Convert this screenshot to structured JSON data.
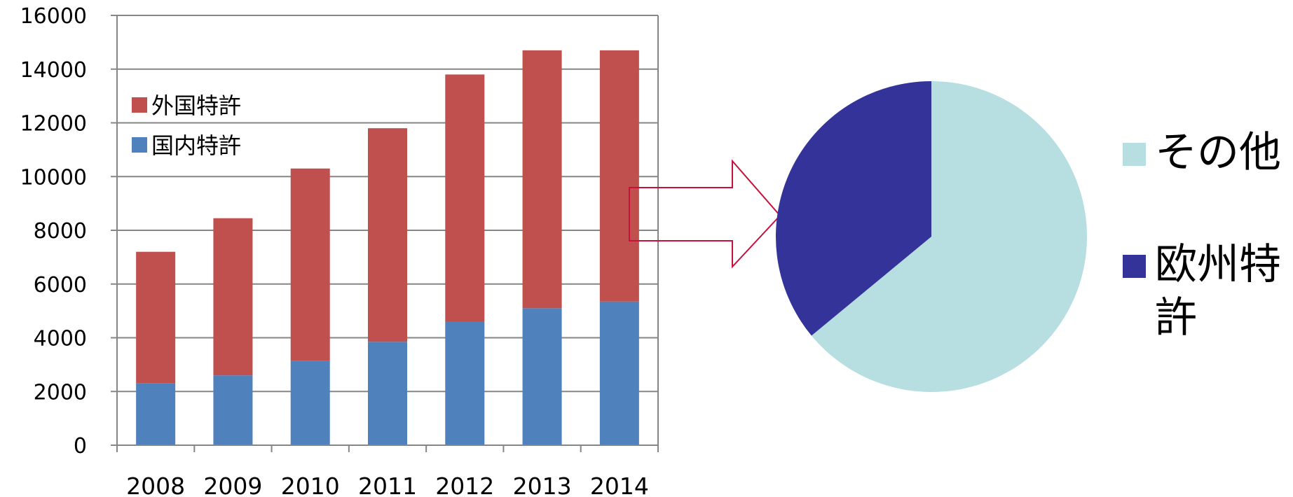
{
  "chart_data": [
    {
      "type": "bar",
      "stacked": true,
      "categories": [
        "2008",
        "2009",
        "2010",
        "2011",
        "2012",
        "2013",
        "2014"
      ],
      "series": [
        {
          "name": "国内特許",
          "values": [
            2300,
            2600,
            3150,
            3850,
            4600,
            5100,
            5350
          ],
          "color": "#4f81bd"
        },
        {
          "name": "外国特許",
          "values": [
            4900,
            5850,
            7150,
            7950,
            9200,
            9600,
            9350
          ],
          "color": "#c0504d"
        }
      ],
      "ylim": [
        0,
        16000
      ],
      "yticks": [
        "0",
        "2000",
        "4000",
        "6000",
        "8000",
        "10000",
        "12000",
        "14000",
        "16000"
      ],
      "grid": true,
      "legend_position": "upper-left inside"
    },
    {
      "type": "pie",
      "slices": [
        {
          "label": "その他",
          "value": 64,
          "color": "#b7dee1"
        },
        {
          "label": "欧州特許",
          "value": 36,
          "color": "#333399"
        }
      ],
      "legend_position": "right"
    }
  ],
  "arrow": {
    "color": "#c8103c"
  }
}
